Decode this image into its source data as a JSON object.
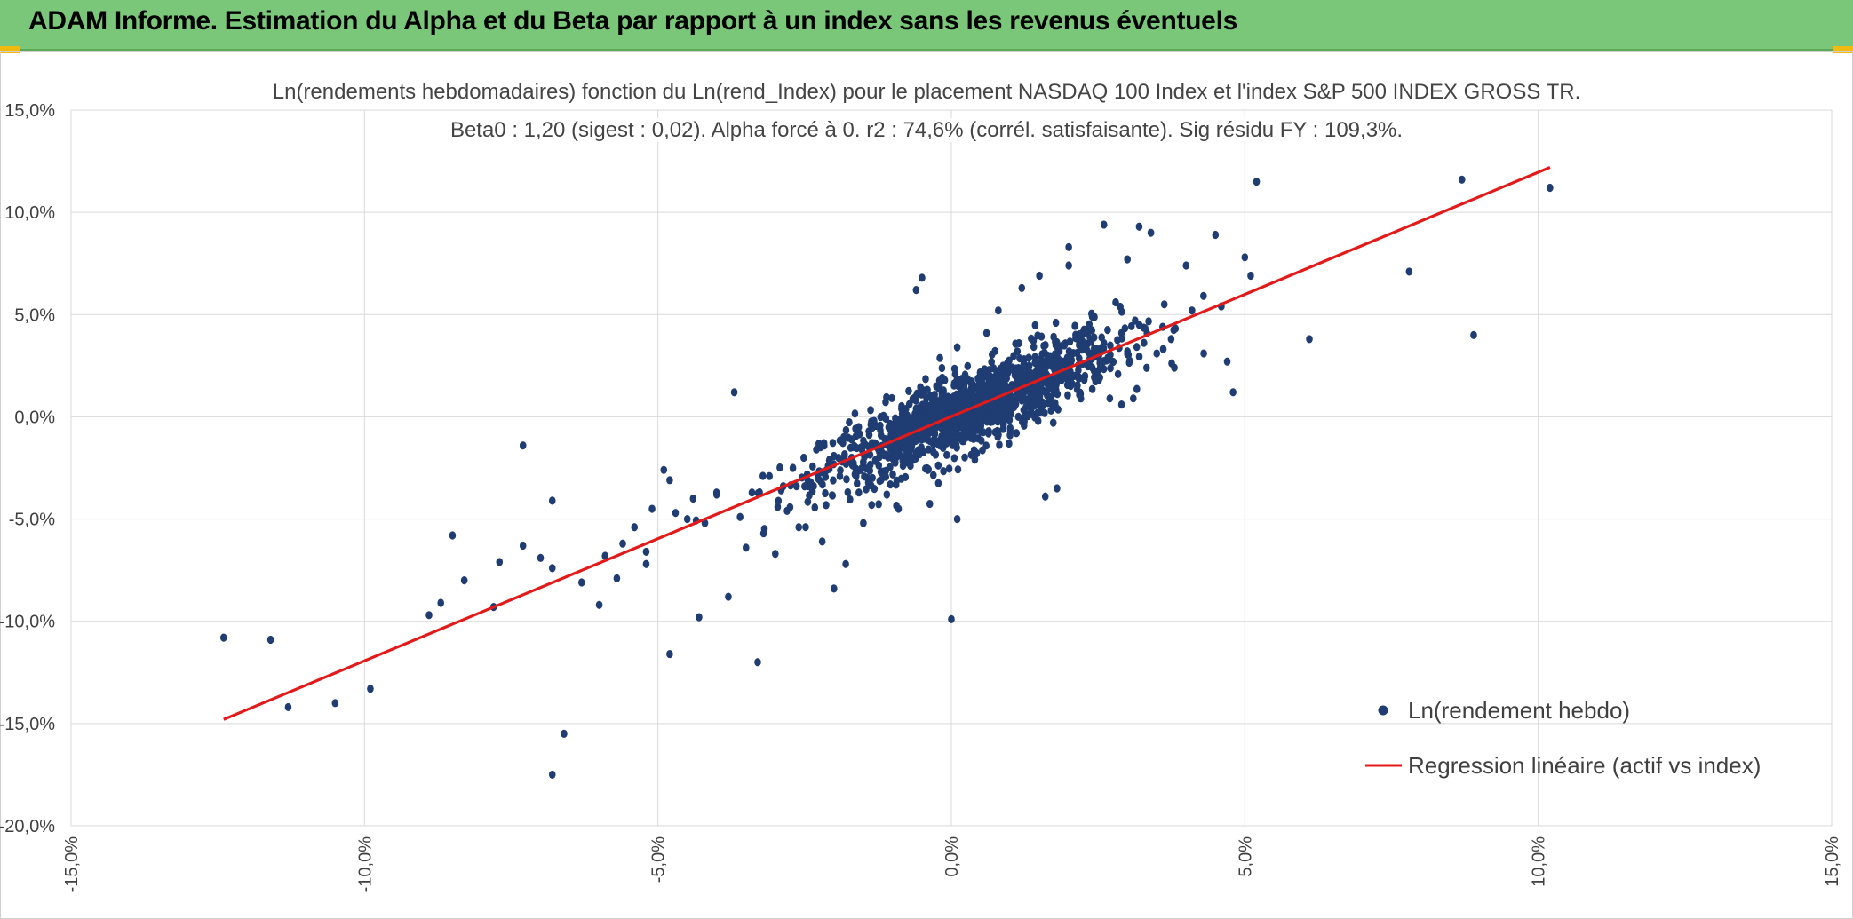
{
  "header": {
    "title": "ADAM Informe. Estimation du Alpha et du Beta par rapport à un index sans les revenus éventuels"
  },
  "colors": {
    "header_bg": "#7ac77a",
    "corner_accent": "#f2b90f",
    "points": "#1f3d73",
    "regression": "#e31a1a",
    "grid": "#d9d9d9"
  },
  "chart_data": {
    "type": "scatter",
    "title": "Ln(rendements hebdomadaires) fonction du Ln(rend_Index) pour le placement NASDAQ 100 Index et l'index S&P 500 INDEX GROSS TR.",
    "subtitle": "Beta0 : 1,20 (sigest : 0,02). Alpha forcé à 0. r2 : 74,6% (corrél. satisfaisante). Sig résidu FY : 109,3%.",
    "xlabel": "",
    "ylabel": "",
    "xlim": [
      -15,
      15
    ],
    "ylim": [
      -20,
      15
    ],
    "x_ticks": [
      "-15,0%",
      "-10,0%",
      "-5,0%",
      "0,0%",
      "5,0%",
      "10,0%",
      "15,0%"
    ],
    "y_ticks": [
      "15,0%",
      "10,0%",
      "5,0%",
      "0,0%",
      "-5,0%",
      "-10,0%",
      "-15,0%",
      "-20,0%"
    ],
    "grid": true,
    "legend_position": "bottom-right",
    "series": [
      {
        "name": "Ln(rendement hebdo)",
        "kind": "scatter",
        "points": [
          [
            -12.4,
            -10.8
          ],
          [
            -11.6,
            -10.9
          ],
          [
            -11.3,
            -14.2
          ],
          [
            -10.5,
            -14.0
          ],
          [
            -9.9,
            -13.3
          ],
          [
            -8.9,
            -9.7
          ],
          [
            -8.7,
            -9.1
          ],
          [
            -8.5,
            -5.8
          ],
          [
            -8.3,
            -8.0
          ],
          [
            -7.8,
            -9.3
          ],
          [
            -7.7,
            -7.1
          ],
          [
            -7.3,
            -6.3
          ],
          [
            -7.3,
            -1.4
          ],
          [
            -7.0,
            -6.9
          ],
          [
            -6.8,
            -4.1
          ],
          [
            -6.8,
            -7.4
          ],
          [
            -6.8,
            -17.5
          ],
          [
            -6.6,
            -15.5
          ],
          [
            -6.3,
            -8.1
          ],
          [
            -6.0,
            -9.2
          ],
          [
            -5.9,
            -6.8
          ],
          [
            -5.7,
            -7.9
          ],
          [
            -5.6,
            -6.2
          ],
          [
            -5.4,
            -5.4
          ],
          [
            -5.2,
            -7.2
          ],
          [
            -5.2,
            -6.6
          ],
          [
            -5.1,
            -4.5
          ],
          [
            -4.9,
            -2.6
          ],
          [
            -4.8,
            -3.1
          ],
          [
            -4.8,
            -11.6
          ],
          [
            -4.7,
            -4.7
          ],
          [
            -4.5,
            -5.0
          ],
          [
            -4.4,
            -4.0
          ],
          [
            -4.3,
            -9.8
          ],
          [
            -4.2,
            -5.2
          ],
          [
            -4.0,
            -3.8
          ],
          [
            -3.8,
            -8.8
          ],
          [
            -3.7,
            1.2
          ],
          [
            -3.6,
            -4.9
          ],
          [
            -3.5,
            -6.4
          ],
          [
            -3.3,
            -12.0
          ],
          [
            -3.2,
            -5.7
          ],
          [
            -3.0,
            -6.7
          ],
          [
            -2.8,
            -4.6
          ],
          [
            -2.6,
            -5.4
          ],
          [
            -2.4,
            -3.2
          ],
          [
            -2.2,
            -6.1
          ],
          [
            -2.0,
            -8.4
          ],
          [
            -1.8,
            -7.2
          ],
          [
            -1.7,
            -2.0
          ],
          [
            -1.5,
            -5.2
          ],
          [
            -1.3,
            -1.3
          ],
          [
            -1.2,
            -3.1
          ],
          [
            -1.1,
            -3.8
          ],
          [
            -0.9,
            -4.5
          ],
          [
            -0.8,
            -0.5
          ],
          [
            -0.6,
            6.2
          ],
          [
            -0.5,
            6.8
          ],
          [
            -0.4,
            -2.6
          ],
          [
            -0.2,
            1.6
          ],
          [
            0.0,
            -9.9
          ],
          [
            0.1,
            -5.0
          ],
          [
            0.1,
            3.4
          ],
          [
            0.4,
            -2.1
          ],
          [
            0.5,
            0.3
          ],
          [
            0.6,
            4.1
          ],
          [
            0.8,
            5.2
          ],
          [
            1.0,
            -0.9
          ],
          [
            1.2,
            6.3
          ],
          [
            1.4,
            1.8
          ],
          [
            1.5,
            6.9
          ],
          [
            1.6,
            -3.9
          ],
          [
            1.7,
            2.5
          ],
          [
            1.8,
            -3.5
          ],
          [
            2.0,
            7.4
          ],
          [
            2.0,
            8.3
          ],
          [
            2.2,
            1.1
          ],
          [
            2.4,
            4.9
          ],
          [
            2.6,
            9.4
          ],
          [
            2.7,
            0.9
          ],
          [
            2.8,
            5.6
          ],
          [
            2.9,
            0.6
          ],
          [
            3.0,
            7.7
          ],
          [
            3.1,
            0.9
          ],
          [
            3.2,
            9.3
          ],
          [
            3.4,
            9.0
          ],
          [
            3.5,
            3.1
          ],
          [
            3.6,
            4.4
          ],
          [
            3.8,
            2.4
          ],
          [
            4.0,
            7.4
          ],
          [
            4.1,
            5.2
          ],
          [
            4.3,
            3.1
          ],
          [
            4.5,
            8.9
          ],
          [
            4.6,
            5.4
          ],
          [
            4.7,
            2.7
          ],
          [
            4.8,
            1.2
          ],
          [
            5.0,
            7.8
          ],
          [
            5.1,
            6.9
          ],
          [
            5.2,
            11.5
          ],
          [
            6.1,
            3.8
          ],
          [
            7.8,
            7.1
          ],
          [
            8.7,
            11.6
          ],
          [
            8.9,
            4.0
          ],
          [
            10.2,
            11.2
          ],
          [
            -3.1,
            -2.9
          ],
          [
            -2.9,
            -3.6
          ],
          [
            -2.7,
            -2.5
          ],
          [
            -2.5,
            -3.4
          ],
          [
            -2.3,
            -1.6
          ],
          [
            -2.1,
            -2.4
          ],
          [
            -1.9,
            -2.9
          ],
          [
            -1.7,
            -1.1
          ],
          [
            -1.5,
            -2.2
          ],
          [
            -1.4,
            -1.5
          ],
          [
            -1.2,
            -0.9
          ],
          [
            -1.0,
            -1.9
          ],
          [
            -0.9,
            -0.3
          ],
          [
            -0.7,
            -1.2
          ],
          [
            -0.6,
            0.4
          ],
          [
            -0.4,
            -0.6
          ],
          [
            -0.3,
            0.1
          ],
          [
            -0.1,
            -0.8
          ],
          [
            0.0,
            0.5
          ],
          [
            0.2,
            -0.2
          ],
          [
            0.3,
            0.6
          ],
          [
            0.5,
            0.9
          ],
          [
            0.6,
            -0.1
          ],
          [
            0.8,
            1.3
          ],
          [
            0.9,
            0.7
          ],
          [
            1.1,
            1.6
          ],
          [
            1.2,
            0.8
          ],
          [
            1.4,
            2.1
          ],
          [
            1.5,
            1.2
          ],
          [
            1.7,
            2.6
          ],
          [
            1.8,
            1.7
          ],
          [
            2.0,
            2.9
          ],
          [
            2.1,
            2.0
          ],
          [
            2.3,
            3.3
          ],
          [
            2.4,
            2.4
          ],
          [
            2.6,
            3.6
          ],
          [
            2.7,
            2.8
          ],
          [
            2.9,
            4.1
          ],
          [
            3.0,
            3.2
          ],
          [
            3.2,
            4.5
          ]
        ]
      },
      {
        "name": "Regression linéaire (actif vs index)",
        "kind": "line",
        "points": [
          [
            -12.4,
            -14.8
          ],
          [
            10.2,
            12.2
          ]
        ]
      }
    ]
  }
}
